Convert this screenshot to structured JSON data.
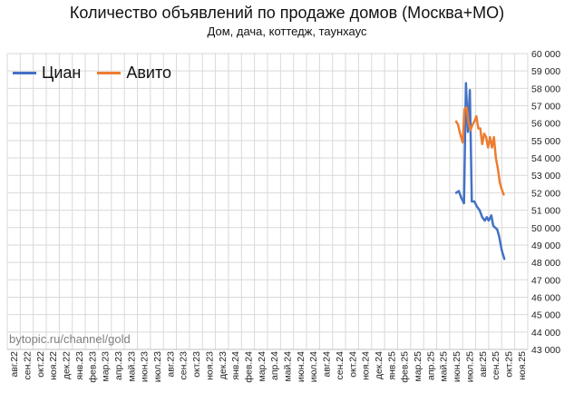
{
  "chart_data": {
    "type": "line",
    "title": "Количество объявлений по продаже домов (Москва+МО)",
    "subtitle": "Дом, дача, коттедж, таунхаус",
    "watermark": "bytopic.ru/channel/gold",
    "ylim": [
      43000,
      60000
    ],
    "y_ticks": [
      "43 000",
      "44 000",
      "45 000",
      "46 000",
      "47 000",
      "48 000",
      "49 000",
      "50 000",
      "51 000",
      "52 000",
      "53 000",
      "54 000",
      "55 000",
      "56 000",
      "57 000",
      "58 000",
      "59 000",
      "60 000"
    ],
    "y_tick_values": [
      43000,
      44000,
      45000,
      46000,
      47000,
      48000,
      49000,
      50000,
      51000,
      52000,
      53000,
      54000,
      55000,
      56000,
      57000,
      58000,
      59000,
      60000
    ],
    "categories": [
      "авг.22",
      "сен.22",
      "окт.22",
      "ноя.22",
      "дек.22",
      "янв.23",
      "фев.23",
      "мар.23",
      "апр.23",
      "май.23",
      "июн.23",
      "июл.23",
      "авг.23",
      "сен.23",
      "окт.23",
      "ноя.23",
      "дек.23",
      "янв.24",
      "фев.24",
      "мар.24",
      "апр.24",
      "май.24",
      "июн.24",
      "июл.24",
      "авг.24",
      "сен.24",
      "окт.24",
      "ноя.24",
      "дек.24",
      "янв.25",
      "фев.25",
      "мар.25",
      "апр.25",
      "май.25",
      "июн.25",
      "июл.25",
      "авг.25",
      "сен.25",
      "окт.25",
      "ноя.25"
    ],
    "grid": true,
    "legend_position": "top-left",
    "series": [
      {
        "name": "Циан",
        "color": "#4472C4",
        "points": [
          [
            34.0,
            52000
          ],
          [
            34.2,
            52100
          ],
          [
            34.4,
            51700
          ],
          [
            34.6,
            51400
          ],
          [
            34.75,
            58300
          ],
          [
            34.9,
            55500
          ],
          [
            35.05,
            57900
          ],
          [
            35.2,
            51500
          ],
          [
            35.4,
            51500
          ],
          [
            35.6,
            51200
          ],
          [
            35.8,
            51000
          ],
          [
            36.0,
            50600
          ],
          [
            36.2,
            50400
          ],
          [
            36.35,
            50600
          ],
          [
            36.5,
            50400
          ],
          [
            36.7,
            50700
          ],
          [
            36.85,
            50100
          ],
          [
            37.0,
            50000
          ],
          [
            37.15,
            49900
          ],
          [
            37.3,
            49500
          ],
          [
            37.5,
            48700
          ],
          [
            37.7,
            48200
          ]
        ]
      },
      {
        "name": "Авито",
        "color": "#ED7D31",
        "points": [
          [
            34.0,
            56100
          ],
          [
            34.15,
            55900
          ],
          [
            34.3,
            55400
          ],
          [
            34.5,
            54900
          ],
          [
            34.65,
            56800
          ],
          [
            34.8,
            56900
          ],
          [
            34.95,
            56000
          ],
          [
            35.1,
            55600
          ],
          [
            35.25,
            55900
          ],
          [
            35.4,
            56100
          ],
          [
            35.55,
            56400
          ],
          [
            35.7,
            55700
          ],
          [
            35.85,
            55700
          ],
          [
            36.0,
            54800
          ],
          [
            36.15,
            55400
          ],
          [
            36.3,
            55200
          ],
          [
            36.45,
            54600
          ],
          [
            36.6,
            55200
          ],
          [
            36.75,
            54600
          ],
          [
            36.9,
            55200
          ],
          [
            37.05,
            54000
          ],
          [
            37.2,
            53400
          ],
          [
            37.35,
            52600
          ],
          [
            37.5,
            52200
          ],
          [
            37.65,
            51900
          ]
        ]
      }
    ]
  }
}
